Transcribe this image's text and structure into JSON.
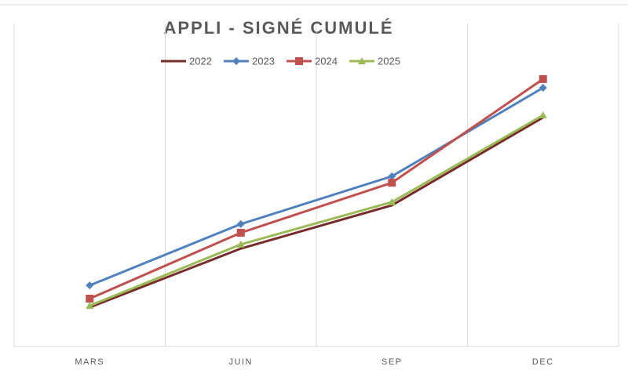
{
  "chart_data": {
    "type": "line",
    "title": "APPLI - SIGNÉ CUMULÉ",
    "categories": [
      "MARS",
      "JUIN",
      "SEP",
      "DEC"
    ],
    "series": [
      {
        "name": "2022",
        "color": "#772c2a",
        "marker": "none",
        "values": [
          12.1,
          30.3,
          43.7,
          70.9
        ]
      },
      {
        "name": "2023",
        "color": "#4f81bd",
        "marker": "diamond",
        "values": [
          18.9,
          37.9,
          52.7,
          80.1
        ]
      },
      {
        "name": "2024",
        "color": "#c0504d",
        "marker": "square",
        "values": [
          14.8,
          35.2,
          50.7,
          82.8
        ]
      },
      {
        "name": "2025",
        "color": "#9bbb59",
        "marker": "triangle",
        "values": [
          12.6,
          31.6,
          44.7,
          71.6
        ]
      }
    ],
    "ylim": [
      0,
      100
    ],
    "legend": "top",
    "grid": true
  }
}
